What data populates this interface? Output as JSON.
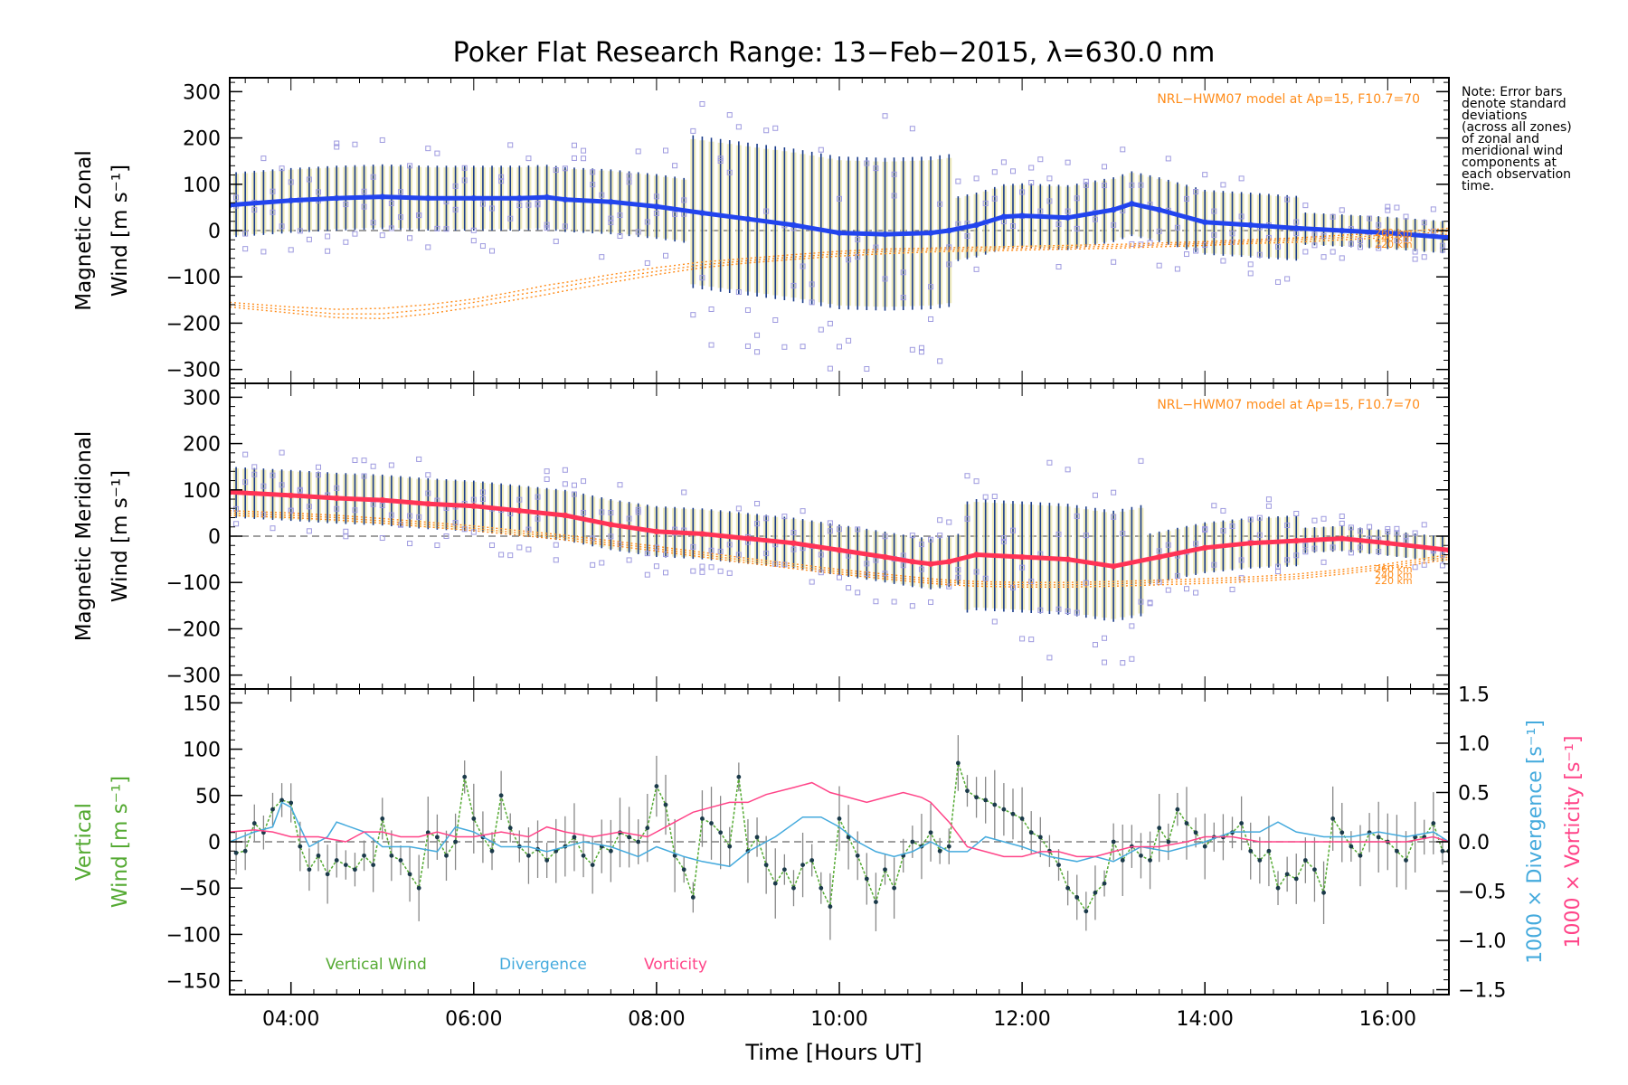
{
  "figure": {
    "title": "Poker Flat Research Range: 13−Feb−2015, λ=630.0 nm",
    "xlabel": "Time [Hours UT]",
    "note": "Note: Error bars\ndenote standard\ndeviations\n(across all zones)\nof zonal and\nmeridional wind\ncomponents at\neach observation\ntime."
  },
  "colors": {
    "zonal": "#2244ee",
    "meridional": "#ff3355",
    "vertical": "#55aa33",
    "divergence": "#44aadd",
    "vorticity": "#ff4488",
    "model": "#ff8c1a",
    "scatter": "#9e9adf",
    "errorbar": "#1a3c8a",
    "spread": "#e8e2a0"
  },
  "chart_data": [
    {
      "type": "line",
      "panel": "zonal",
      "ylabel_line1": "Magnetic Zonal",
      "ylabel_line2": "Wind [m s⁻¹]",
      "model_label": "NRL−HWM07 model at Ap=15, F10.7=70",
      "ylim": [
        -330,
        330
      ],
      "yticks": [
        300,
        200,
        100,
        0,
        -100,
        -200,
        -300
      ],
      "ytick_labels": [
        "300",
        "200",
        "100",
        "0",
        "−100",
        "−200",
        "−300"
      ],
      "xlim": [
        3.33,
        16.67
      ],
      "x": [
        3.33,
        4.0,
        4.5,
        5.0,
        5.5,
        6.0,
        6.5,
        6.8,
        7.0,
        7.5,
        8.0,
        8.5,
        9.0,
        9.5,
        10.0,
        10.5,
        11.0,
        11.2,
        11.5,
        11.8,
        12.0,
        12.5,
        13.0,
        13.2,
        13.5,
        14.0,
        14.5,
        15.0,
        15.5,
        16.0,
        16.67
      ],
      "series": [
        {
          "name": "Magnetic Zonal Wind",
          "values": [
            55,
            65,
            70,
            73,
            70,
            70,
            70,
            72,
            67,
            62,
            52,
            38,
            25,
            12,
            -5,
            -8,
            -5,
            0,
            12,
            30,
            32,
            28,
            45,
            58,
            45,
            18,
            12,
            5,
            0,
            -5,
            -15
          ]
        }
      ],
      "model_curves": [
        {
          "name": "260 km",
          "values": [
            -155,
            -165,
            -170,
            -168,
            -160,
            -148,
            -130,
            -118,
            -112,
            -95,
            -80,
            -68,
            -60,
            -52,
            -45,
            -40,
            -38,
            -37,
            -36,
            -35,
            -34,
            -32,
            -30,
            -29,
            -27,
            -24,
            -20,
            -16,
            -10,
            -5,
            5
          ]
        },
        {
          "name": "240 km",
          "values": [
            -160,
            -172,
            -180,
            -180,
            -170,
            -155,
            -138,
            -128,
            -120,
            -103,
            -88,
            -74,
            -65,
            -57,
            -50,
            -45,
            -42,
            -41,
            -40,
            -39,
            -38,
            -36,
            -34,
            -33,
            -31,
            -28,
            -24,
            -20,
            -15,
            -10,
            -2
          ]
        },
        {
          "name": "220 km",
          "values": [
            -165,
            -178,
            -188,
            -190,
            -180,
            -165,
            -148,
            -138,
            -130,
            -112,
            -95,
            -80,
            -70,
            -62,
            -55,
            -50,
            -46,
            -45,
            -44,
            -43,
            -42,
            -40,
            -38,
            -37,
            -35,
            -32,
            -28,
            -25,
            -20,
            -15,
            -8
          ]
        }
      ],
      "model_labels": [
        "260 km",
        "240 km",
        "220 km"
      ]
    },
    {
      "type": "line",
      "panel": "meridional",
      "ylabel_line1": "Magnetic Meridional",
      "ylabel_line2": "Wind [m s⁻¹]",
      "model_label": "NRL−HWM07 model at Ap=15, F10.7=70",
      "ylim": [
        -330,
        330
      ],
      "yticks": [
        300,
        200,
        100,
        0,
        -100,
        -200,
        -300
      ],
      "ytick_labels": [
        "300",
        "200",
        "100",
        "0",
        "−100",
        "−200",
        "−300"
      ],
      "xlim": [
        3.33,
        16.67
      ],
      "x": [
        3.33,
        4.0,
        4.5,
        5.0,
        5.5,
        6.0,
        6.5,
        7.0,
        7.5,
        8.0,
        8.5,
        9.0,
        9.5,
        10.0,
        10.5,
        10.8,
        11.0,
        11.2,
        11.5,
        12.0,
        12.5,
        13.0,
        13.5,
        14.0,
        14.5,
        15.0,
        15.5,
        16.0,
        16.67
      ],
      "series": [
        {
          "name": "Magnetic Meridional Wind",
          "values": [
            95,
            88,
            82,
            78,
            70,
            65,
            55,
            45,
            25,
            10,
            5,
            -5,
            -15,
            -30,
            -45,
            -55,
            -60,
            -55,
            -40,
            -45,
            -50,
            -65,
            -45,
            -25,
            -15,
            -10,
            -5,
            -15,
            -30
          ]
        }
      ],
      "model_curves": [
        {
          "name": "260 km",
          "values": [
            55,
            50,
            45,
            38,
            30,
            22,
            12,
            2,
            -10,
            -22,
            -35,
            -48,
            -60,
            -72,
            -82,
            -88,
            -92,
            -95,
            -98,
            -100,
            -100,
            -98,
            -95,
            -92,
            -88,
            -82,
            -72,
            -60,
            -40
          ]
        },
        {
          "name": "240 km",
          "values": [
            50,
            45,
            40,
            33,
            25,
            17,
            7,
            -3,
            -15,
            -27,
            -40,
            -53,
            -65,
            -77,
            -87,
            -93,
            -97,
            -100,
            -103,
            -105,
            -105,
            -103,
            -100,
            -97,
            -93,
            -87,
            -77,
            -65,
            -45
          ]
        },
        {
          "name": "220 km",
          "values": [
            45,
            40,
            35,
            28,
            20,
            12,
            2,
            -8,
            -20,
            -32,
            -45,
            -58,
            -70,
            -82,
            -92,
            -98,
            -102,
            -105,
            -108,
            -110,
            -110,
            -108,
            -105,
            -102,
            -98,
            -92,
            -82,
            -70,
            -50
          ]
        }
      ],
      "model_labels": [
        "260 km",
        "240 km",
        "220 km"
      ]
    },
    {
      "type": "line",
      "panel": "vertical",
      "ylabel_left_line1": "Vertical",
      "ylabel_left_line2": "Wind [m s⁻¹]",
      "ylabel_right1": "1000 × Divergence [s⁻¹]",
      "ylabel_right2": "1000 × Vorticity [s⁻¹]",
      "ylim": [
        -165,
        165
      ],
      "yticks": [
        150,
        100,
        50,
        0,
        -50,
        -100,
        -150
      ],
      "ytick_labels": [
        "150",
        "100",
        "50",
        "0",
        "−50",
        "−100",
        "−150"
      ],
      "ylim_right": [
        -1.55,
        1.55
      ],
      "yticks_right": [
        1.5,
        1.0,
        0.5,
        0.0,
        -0.5,
        -1.0,
        -1.5
      ],
      "ytick_right_labels": [
        "1.5",
        "1.0",
        "0.5",
        "0.0",
        "−0.5",
        "−1.0",
        "−1.5"
      ],
      "xlim": [
        3.33,
        16.67
      ],
      "xticks": [
        4,
        6,
        8,
        10,
        12,
        14,
        16
      ],
      "xtick_labels": [
        "04:00",
        "06:00",
        "08:00",
        "10:00",
        "12:00",
        "14:00",
        "16:00"
      ],
      "legend": [
        "Vertical Wind",
        "Divergence",
        "Vorticity"
      ],
      "series": [
        {
          "name": "Vertical Wind",
          "axis": "left",
          "x": [
            3.4,
            3.5,
            3.6,
            3.7,
            3.8,
            3.9,
            4.0,
            4.1,
            4.2,
            4.3,
            4.4,
            4.5,
            4.6,
            4.7,
            4.8,
            4.9,
            5.0,
            5.1,
            5.2,
            5.3,
            5.4,
            5.5,
            5.6,
            5.7,
            5.8,
            5.9,
            6.0,
            6.1,
            6.2,
            6.3,
            6.4,
            6.5,
            6.6,
            6.7,
            6.8,
            6.9,
            7.0,
            7.1,
            7.2,
            7.3,
            7.4,
            7.5,
            7.6,
            7.7,
            7.8,
            7.9,
            8.0,
            8.1,
            8.2,
            8.3,
            8.4,
            8.5,
            8.6,
            8.7,
            8.8,
            8.9,
            9.0,
            9.1,
            9.2,
            9.3,
            9.4,
            9.5,
            9.6,
            9.7,
            9.8,
            9.9,
            10.0,
            10.1,
            10.2,
            10.3,
            10.4,
            10.5,
            10.6,
            10.7,
            10.8,
            10.9,
            11.0,
            11.1,
            11.2,
            11.3,
            11.4,
            11.5,
            11.6,
            11.7,
            11.8,
            11.9,
            12.0,
            12.1,
            12.2,
            12.3,
            12.4,
            12.5,
            12.6,
            12.7,
            12.8,
            12.9,
            13.0,
            13.1,
            13.2,
            13.3,
            13.4,
            13.5,
            13.6,
            13.7,
            13.8,
            13.9,
            14.0,
            14.1,
            14.2,
            14.3,
            14.4,
            14.5,
            14.6,
            14.7,
            14.8,
            14.9,
            15.0,
            15.1,
            15.2,
            15.3,
            15.4,
            15.5,
            15.6,
            15.7,
            15.8,
            15.9,
            16.0,
            16.1,
            16.2,
            16.3,
            16.4,
            16.5,
            16.6,
            16.67
          ],
          "values": [
            -12,
            -10,
            20,
            10,
            35,
            45,
            42,
            -5,
            -30,
            -15,
            -35,
            -20,
            -25,
            -30,
            -15,
            -25,
            25,
            -15,
            -20,
            -35,
            -50,
            10,
            5,
            -15,
            0,
            70,
            25,
            5,
            -10,
            50,
            15,
            -5,
            -15,
            -8,
            -20,
            -10,
            -5,
            5,
            -15,
            -25,
            -5,
            -10,
            10,
            5,
            0,
            15,
            60,
            40,
            -15,
            -30,
            -60,
            25,
            20,
            10,
            -5,
            70,
            -10,
            5,
            -25,
            -45,
            -30,
            -50,
            -25,
            -20,
            -50,
            -70,
            25,
            5,
            -15,
            -40,
            -65,
            -30,
            -50,
            -15,
            0,
            -5,
            10,
            -10,
            -5,
            85,
            55,
            48,
            45,
            40,
            35,
            30,
            25,
            10,
            5,
            -10,
            -25,
            -50,
            -60,
            -75,
            -55,
            -45,
            0,
            -20,
            -5,
            -15,
            -20,
            15,
            0,
            35,
            20,
            10,
            -5,
            5,
            5,
            10,
            20,
            -10,
            -20,
            -10,
            -50,
            -35,
            -40,
            -20,
            -30,
            -55,
            25,
            10,
            -5,
            -15,
            10,
            5,
            0,
            -10,
            -20,
            5,
            5,
            20,
            -10,
            -10
          ]
        },
        {
          "name": "Divergence",
          "axis": "right",
          "x": [
            3.33,
            3.6,
            3.8,
            3.9,
            4.0,
            4.2,
            4.4,
            4.5,
            4.8,
            5.0,
            5.3,
            5.6,
            5.8,
            6.0,
            6.3,
            6.6,
            6.8,
            7.0,
            7.2,
            7.5,
            7.8,
            8.0,
            8.3,
            8.5,
            8.8,
            9.0,
            9.3,
            9.6,
            9.8,
            10.0,
            10.2,
            10.4,
            10.6,
            10.8,
            11.0,
            11.2,
            11.4,
            11.6,
            11.8,
            12.0,
            12.3,
            12.6,
            12.8,
            13.0,
            13.3,
            13.6,
            14.0,
            14.3,
            14.6,
            14.8,
            15.0,
            15.3,
            15.6,
            15.9,
            16.2,
            16.5,
            16.67
          ],
          "values": [
            0.0,
            0.1,
            0.15,
            0.4,
            0.35,
            -0.05,
            0.05,
            0.2,
            0.1,
            -0.05,
            -0.05,
            -0.1,
            0.15,
            0.1,
            -0.05,
            -0.05,
            -0.1,
            -0.05,
            0.0,
            -0.05,
            -0.15,
            -0.05,
            -0.15,
            -0.2,
            -0.25,
            -0.1,
            0.05,
            0.25,
            0.25,
            0.15,
            0.0,
            -0.1,
            -0.15,
            -0.1,
            0.0,
            -0.1,
            -0.1,
            0.05,
            0.0,
            -0.05,
            -0.15,
            -0.2,
            -0.15,
            -0.2,
            -0.05,
            -0.1,
            0.0,
            0.1,
            0.1,
            0.2,
            0.1,
            0.05,
            0.05,
            0.1,
            0.05,
            0.1,
            0.0
          ]
        },
        {
          "name": "Vorticity",
          "axis": "right",
          "x": [
            3.33,
            3.6,
            3.8,
            4.0,
            4.3,
            4.6,
            4.8,
            5.0,
            5.2,
            5.4,
            5.6,
            5.8,
            6.0,
            6.3,
            6.6,
            6.8,
            7.0,
            7.3,
            7.6,
            7.9,
            8.0,
            8.2,
            8.4,
            8.6,
            8.8,
            9.0,
            9.2,
            9.5,
            9.7,
            9.9,
            10.1,
            10.3,
            10.5,
            10.7,
            10.9,
            11.0,
            11.2,
            11.4,
            11.6,
            11.8,
            12.0,
            12.2,
            12.4,
            12.6,
            12.8,
            13.0,
            13.2,
            13.5,
            13.8,
            14.0,
            14.3,
            14.6,
            15.0,
            15.3,
            15.6,
            15.9,
            16.2,
            16.5,
            16.67
          ],
          "values": [
            0.1,
            0.12,
            0.1,
            0.05,
            0.05,
            0.0,
            0.1,
            0.1,
            0.05,
            0.05,
            0.1,
            0.05,
            0.05,
            0.1,
            0.05,
            0.15,
            0.1,
            0.05,
            0.1,
            0.05,
            0.1,
            0.2,
            0.3,
            0.35,
            0.4,
            0.4,
            0.48,
            0.55,
            0.6,
            0.5,
            0.45,
            0.4,
            0.45,
            0.5,
            0.45,
            0.4,
            0.2,
            -0.05,
            -0.1,
            -0.15,
            -0.15,
            -0.1,
            -0.1,
            -0.15,
            -0.15,
            -0.1,
            -0.05,
            -0.05,
            0.0,
            0.05,
            0.05,
            0.0,
            0.0,
            0.0,
            0.0,
            0.0,
            0.0,
            0.05,
            0.0
          ]
        }
      ]
    }
  ]
}
